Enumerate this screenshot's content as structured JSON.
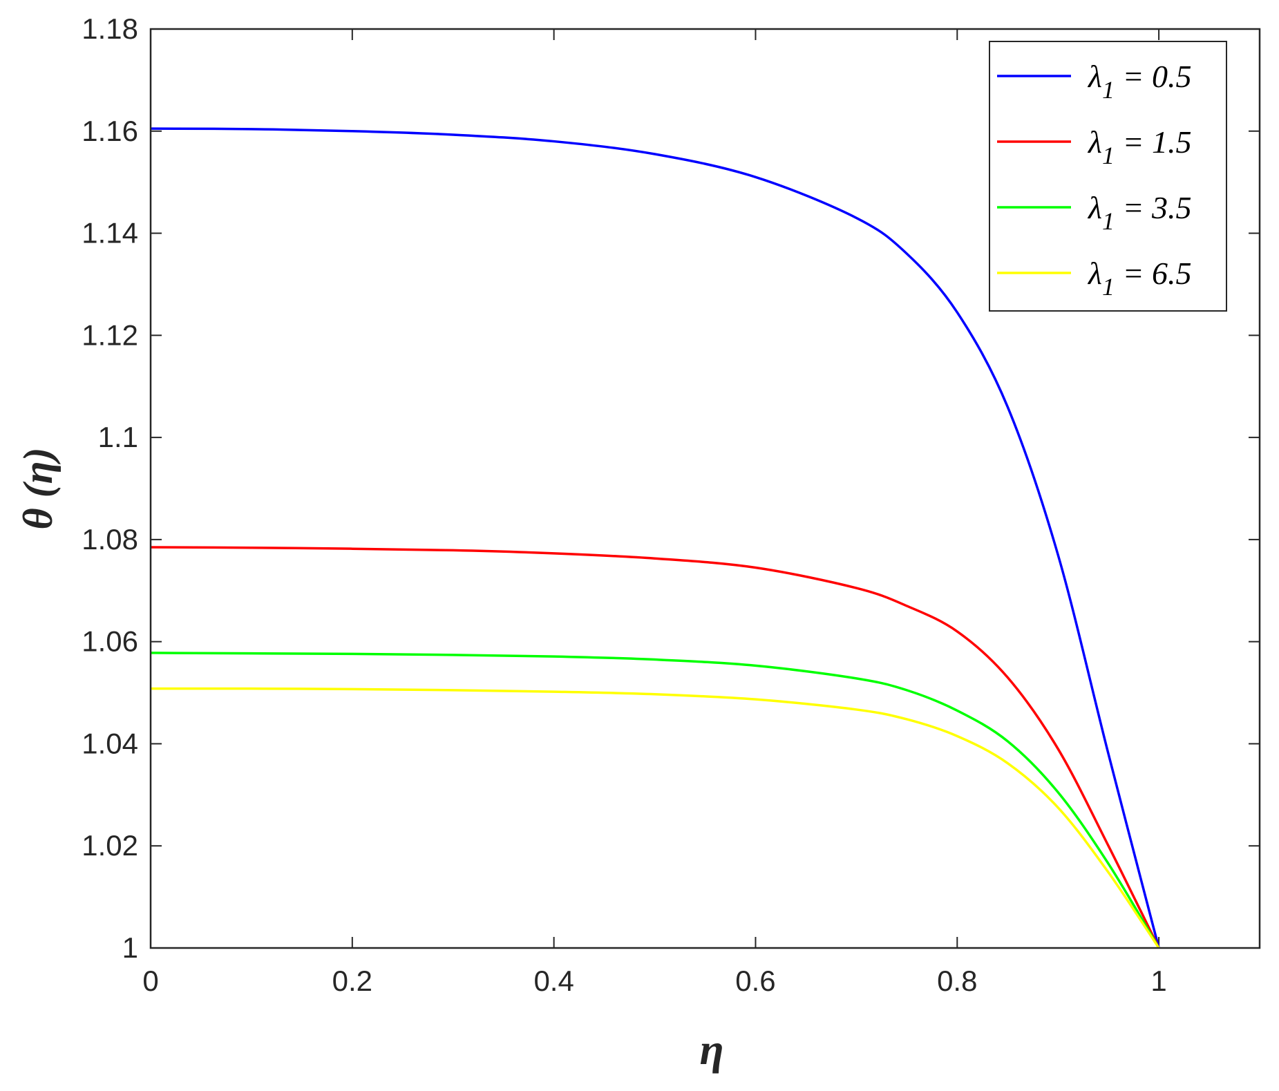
{
  "chart_data": {
    "type": "line",
    "title": "",
    "xlabel": "η",
    "ylabel": "θ (η)",
    "xlim": [
      0,
      1.1
    ],
    "ylim": [
      1,
      1.18
    ],
    "xticks": [
      "0",
      "0.2",
      "0.4",
      "0.6",
      "0.8",
      "1"
    ],
    "yticks": [
      "1",
      "1.02",
      "1.04",
      "1.06",
      "1.08",
      "1.1",
      "1.12",
      "1.14",
      "1.16",
      "1.18"
    ],
    "grid": false,
    "legend_position": "top-right",
    "x": [
      0,
      0.1,
      0.2,
      0.3,
      0.4,
      0.5,
      0.6,
      0.7,
      0.75,
      0.8,
      0.85,
      0.9,
      0.95,
      1.0
    ],
    "series": [
      {
        "name": "λ1 = 0.5",
        "symbol": "λ",
        "sub": "1",
        "eq": " = 0.5",
        "color": "#0000ff",
        "values": [
          1.1605,
          1.1604,
          1.16,
          1.1593,
          1.158,
          1.1555,
          1.151,
          1.143,
          1.136,
          1.1245,
          1.106,
          1.077,
          1.038,
          1.0
        ]
      },
      {
        "name": "λ1 = 1.5",
        "symbol": "λ",
        "sub": "1",
        "eq": " = 1.5",
        "color": "#ff0000",
        "values": [
          1.0785,
          1.0784,
          1.0782,
          1.0779,
          1.0773,
          1.0763,
          1.0745,
          1.0705,
          1.067,
          1.062,
          1.053,
          1.039,
          1.02,
          1.0
        ]
      },
      {
        "name": "λ1 = 3.5",
        "symbol": "λ",
        "sub": "1",
        "eq": " = 3.5",
        "color": "#00ff00",
        "values": [
          1.0578,
          1.0577,
          1.0576,
          1.0574,
          1.0571,
          1.0565,
          1.0553,
          1.0528,
          1.0505,
          1.0465,
          1.0405,
          1.0305,
          1.0165,
          1.0
        ]
      },
      {
        "name": "λ1 = 6.5",
        "symbol": "λ",
        "sub": "1",
        "eq": " = 6.5",
        "color": "#ffff00",
        "values": [
          1.0508,
          1.0508,
          1.0507,
          1.0505,
          1.0502,
          1.0497,
          1.0487,
          1.0467,
          1.0448,
          1.0415,
          1.0362,
          1.0275,
          1.0148,
          1.0
        ]
      }
    ]
  }
}
